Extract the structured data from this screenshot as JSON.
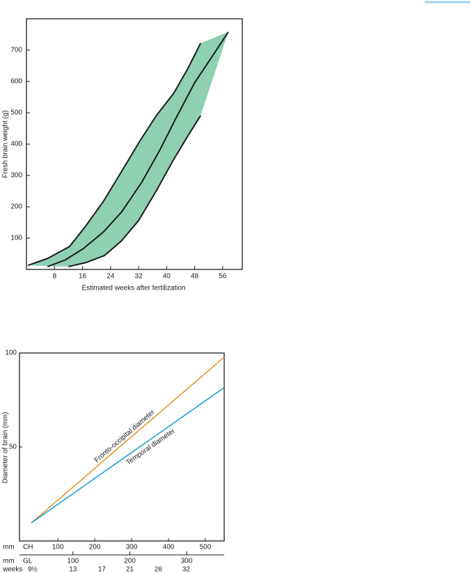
{
  "chart_data": [
    {
      "type": "line",
      "ylabel": "Fresh brain weight (g)",
      "xlabel": "Estimated weeks after fertilization",
      "xlim": [
        0,
        61.6
      ],
      "ylim": [
        0,
        800
      ],
      "xticks": [
        8,
        16,
        24,
        32,
        40,
        48,
        56
      ],
      "yticks": [
        100,
        200,
        300,
        400,
        500,
        600,
        700
      ],
      "band_color": "#8fcfb2",
      "series": [
        {
          "color": "#1a1a1a",
          "x": [
            0.4,
            6,
            12.3,
            17,
            22,
            27,
            32.2,
            37,
            42,
            46,
            49.7
          ],
          "values": [
            13,
            35,
            73,
            140,
            218,
            310,
            407,
            490,
            562,
            640,
            722
          ]
        },
        {
          "color": "#1a1a1a",
          "x": [
            6,
            11,
            16.3,
            22,
            27.2,
            33,
            38.2,
            43,
            48,
            53,
            57.6
          ],
          "values": [
            9,
            30,
            67,
            120,
            184,
            280,
            384,
            490,
            596,
            680,
            758
          ]
        },
        {
          "color": "#1a1a1a",
          "x": [
            12,
            17,
            22.2,
            27,
            32,
            37,
            42,
            46,
            49.7
          ],
          "values": [
            9,
            22,
            44,
            90,
            156,
            250,
            351,
            425,
            491
          ]
        }
      ]
    },
    {
      "type": "line",
      "ylabel": "Diameter of brain (mm)",
      "xlim": [
        -4,
        551
      ],
      "ylim": [
        0,
        100
      ],
      "yticks": [
        50,
        100
      ],
      "x_axis_unit": "mm",
      "x_axis_name": "CH",
      "xticks": [
        100,
        200,
        300,
        400,
        500
      ],
      "x2_axis_unit": "mm",
      "x2_axis_name": "GL",
      "x2lim": [
        6,
        366
      ],
      "x2ticks": [
        100,
        200,
        300
      ],
      "x3_axis_name": "weeks",
      "x3ticks": [
        {
          "value": 29,
          "label": "9½"
        },
        {
          "value": 100,
          "label": "13"
        },
        {
          "value": 151,
          "label": "17"
        },
        {
          "value": 200,
          "label": "21"
        },
        {
          "value": 250,
          "label": "26"
        },
        {
          "value": 299,
          "label": "32"
        }
      ],
      "series": [
        {
          "name": "Fronto-occipital diameter",
          "color": "#e8952c",
          "x": [
            28,
            551
          ],
          "values": [
            9.6,
            97.8
          ]
        },
        {
          "name": "Temporal diameter",
          "color": "#1c9fd6",
          "x": [
            28,
            551
          ],
          "values": [
            9.6,
            81.6
          ]
        }
      ]
    }
  ]
}
